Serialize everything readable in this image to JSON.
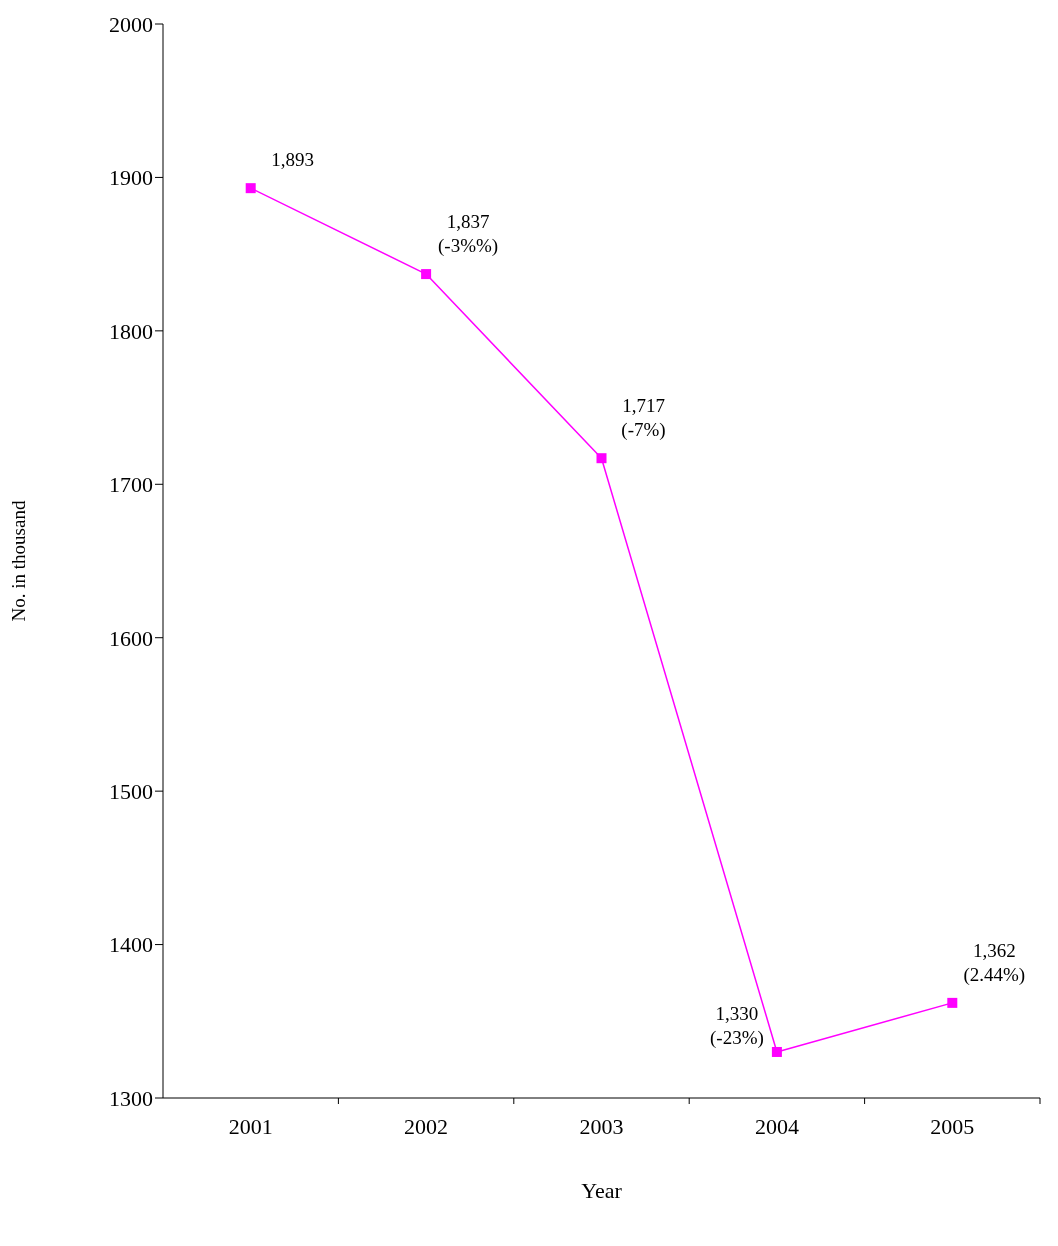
{
  "chart_data": {
    "type": "line",
    "xlabel": "Year",
    "ylabel": "No. in thousand",
    "categories": [
      "2001",
      "2002",
      "2003",
      "2004",
      "2005"
    ],
    "series": [
      {
        "color": "#ff00ff",
        "values": [
          1893,
          1837,
          1717,
          1330,
          1362
        ],
        "value_labels": [
          "1,893",
          "1,837 (-3%%)",
          "1,717 (-7%)",
          "1,330 (-23%)",
          "1,362 (2.44%)"
        ]
      }
    ],
    "ylim": [
      1300,
      2000
    ],
    "yticks": [
      1300,
      1400,
      1500,
      1600,
      1700,
      1800,
      1900,
      2000
    ],
    "grid": false,
    "legend": false,
    "marker": "square",
    "line_style": "solid"
  }
}
